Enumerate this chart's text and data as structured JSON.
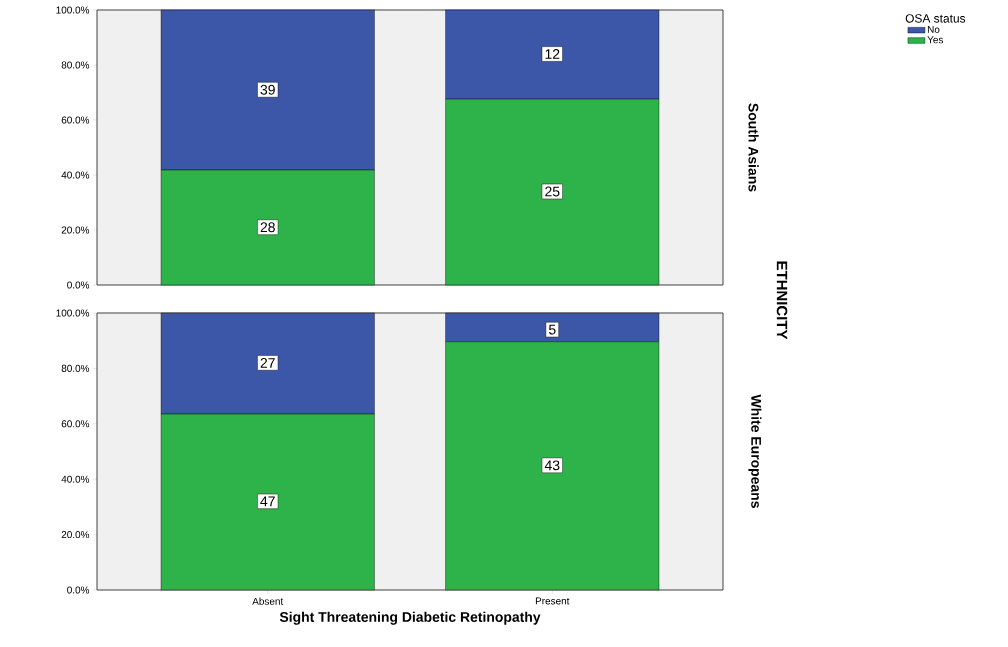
{
  "chart_data": [
    {
      "type": "bar",
      "stacked": true,
      "categories": [
        "Absent",
        "Present"
      ],
      "y2label": "South Asians",
      "legend": "top right",
      "legend_title": "OSA status",
      "tick_labels": "y",
      "annotations": [
        "ETHNICITY",
        {
          "text": "28",
          "x": "Absent",
          "y": 21
        },
        {
          "text": "39",
          "x": "Absent",
          "y": 71
        },
        {
          "text": "25",
          "x": "Present",
          "y": 34
        },
        {
          "text": "12",
          "x": "Present",
          "y": 84
        }
      ],
      "ylim": [
        0,
        100
      ],
      "yticks": [
        {
          "value": 0,
          "label": "0.0%"
        },
        {
          "value": 20,
          "label": "20.0%"
        },
        {
          "value": 40,
          "label": "40.0%"
        },
        {
          "value": 60,
          "label": "60.0%"
        },
        {
          "value": 80,
          "label": "80.0%"
        },
        {
          "value": 100,
          "label": "100.0%"
        }
      ],
      "series": [
        {
          "name": "Yes",
          "color": "#2db34a",
          "values": [
            41.8,
            67.6
          ]
        },
        {
          "name": "No",
          "color": "#3c56a8",
          "values": [
            58.2,
            32.4
          ]
        }
      ]
    },
    {
      "type": "bar",
      "stacked": true,
      "categories": [
        "Absent",
        "Present"
      ],
      "y2label": "White Europeans",
      "xlabel": "Sight Threatening Diabetic Retinopathy",
      "annotations": [
        {
          "text": "47",
          "x": "Absent",
          "y": 32
        },
        {
          "text": "27",
          "x": "Absent",
          "y": 82
        },
        {
          "text": "43",
          "x": "Present",
          "y": 45
        },
        {
          "text": "5",
          "x": "Present",
          "y": 94
        }
      ],
      "ylim": [
        0,
        100
      ],
      "yticks": [
        {
          "value": 0,
          "label": "0.0%"
        },
        {
          "value": 20,
          "label": "20.0%"
        },
        {
          "value": 40,
          "label": "40.0%"
        },
        {
          "value": 60,
          "label": "60.0%"
        },
        {
          "value": 80,
          "label": "80.0%"
        },
        {
          "value": 100,
          "label": "100.0%"
        }
      ],
      "series": [
        {
          "color": "#2db34a",
          "values": [
            63.5,
            89.6
          ]
        },
        {
          "color": "#3c56a8",
          "values": [
            36.5,
            10.4
          ]
        }
      ]
    }
  ]
}
